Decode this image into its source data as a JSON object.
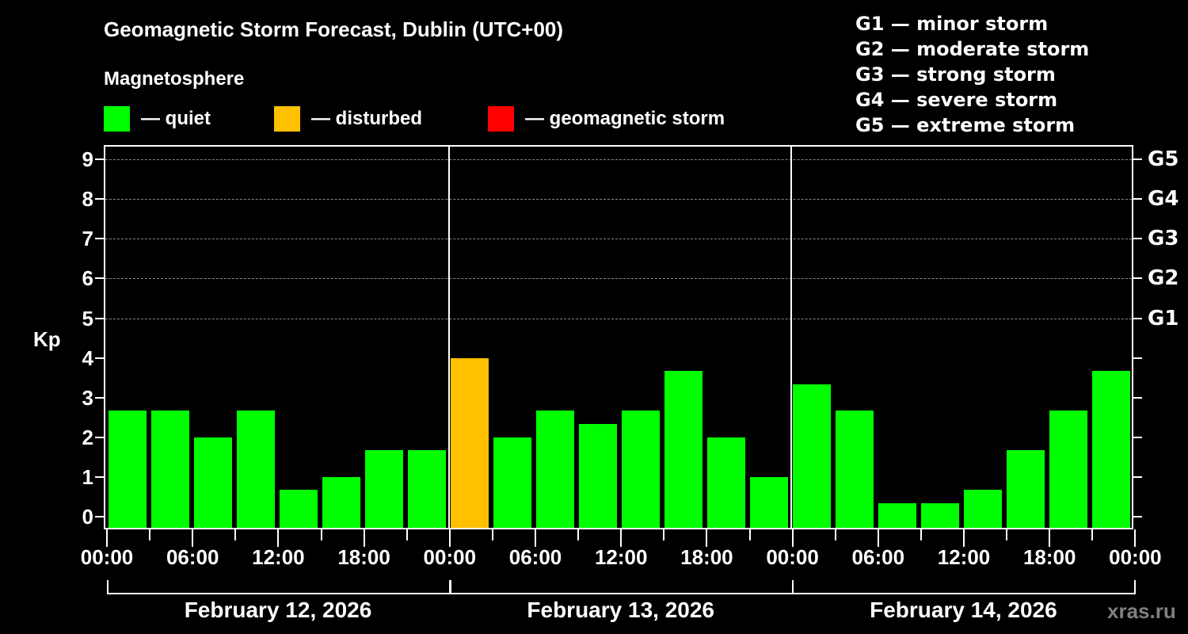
{
  "title": "Geomagnetic Storm Forecast, Dublin (UTC+00)",
  "subtitle": "Magnetosphere",
  "legend": [
    {
      "label": "— quiet",
      "color": "#00ff00"
    },
    {
      "label": "— disturbed",
      "color": "#ffc000"
    },
    {
      "label": "— geomagnetic storm",
      "color": "#ff0000"
    }
  ],
  "g_legend": [
    "G1 — minor storm",
    "G2 — moderate storm",
    "G3 — strong storm",
    "G4 — severe storm",
    "G5 — extreme storm"
  ],
  "watermark": "xras.ru",
  "chart_data": {
    "type": "bar",
    "title": "Geomagnetic Storm Forecast, Dublin (UTC+00)",
    "ylabel": "Kp",
    "xlabel": "",
    "ylim": [
      0,
      9
    ],
    "yticks": [
      "0",
      "1",
      "2",
      "3",
      "4",
      "5",
      "6",
      "7",
      "8",
      "9"
    ],
    "right_ticks": [
      {
        "kp": 5,
        "label": "G1"
      },
      {
        "kp": 6,
        "label": "G2"
      },
      {
        "kp": 7,
        "label": "G3"
      },
      {
        "kp": 8,
        "label": "G4"
      },
      {
        "kp": 9,
        "label": "G5"
      }
    ],
    "grid": "dashed horizontal lines at Kp 5-9",
    "x_tick_labels": [
      "00:00",
      "06:00",
      "12:00",
      "18:00",
      "00:00",
      "06:00",
      "12:00",
      "18:00",
      "00:00",
      "06:00",
      "12:00",
      "18:00",
      "00:00"
    ],
    "days": [
      "February 12, 2026",
      "February 13, 2026",
      "February 14, 2026"
    ],
    "interval_hours": 3,
    "series": [
      {
        "name": "Kp",
        "values": [
          2.67,
          2.67,
          2.0,
          2.67,
          0.67,
          1.0,
          1.67,
          1.67,
          4.0,
          2.0,
          2.67,
          2.33,
          2.67,
          3.67,
          2.0,
          1.0,
          3.33,
          2.67,
          0.33,
          0.33,
          0.67,
          1.67,
          2.67,
          3.67
        ],
        "colors": [
          "quiet",
          "quiet",
          "quiet",
          "quiet",
          "quiet",
          "quiet",
          "quiet",
          "quiet",
          "disturbed",
          "quiet",
          "quiet",
          "quiet",
          "quiet",
          "quiet",
          "quiet",
          "quiet",
          "quiet",
          "quiet",
          "quiet",
          "quiet",
          "quiet",
          "quiet",
          "quiet",
          "quiet"
        ]
      }
    ],
    "color_map": {
      "quiet": "#00ff00",
      "disturbed": "#ffc000",
      "storm": "#ff0000"
    }
  }
}
